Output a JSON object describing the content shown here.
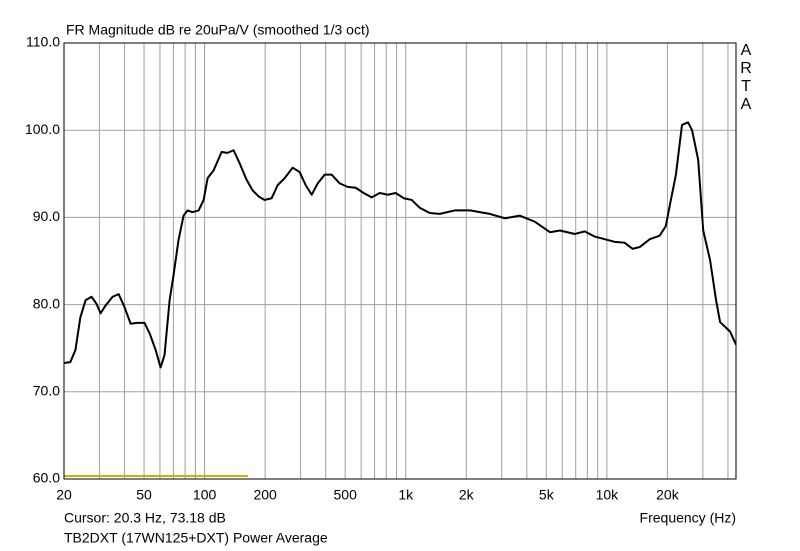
{
  "chart_data": {
    "type": "line",
    "title": "FR Magnitude dB re 20uPa/V (smoothed 1/3 oct)",
    "watermark": "ARTA",
    "cursor_text": "Cursor: 20.3 Hz, 73.18 dB",
    "x_label": "Frequency (Hz)",
    "log_x": true,
    "grid": true,
    "xlim": [
      20,
      43850
    ],
    "ylim": [
      60,
      110
    ],
    "xticks": [
      20,
      50,
      100,
      200,
      500,
      {
        "value": 1000,
        "label": "1k"
      },
      {
        "value": 2000,
        "label": "2k"
      },
      {
        "value": 5000,
        "label": "5k"
      },
      {
        "value": 10000,
        "label": "10k"
      },
      {
        "value": 20000,
        "label": "20k"
      }
    ],
    "xgrid": [
      30,
      40,
      60,
      70,
      80,
      90,
      300,
      400,
      600,
      700,
      800,
      900,
      3000,
      4000,
      6000,
      7000,
      8000,
      9000,
      30000,
      40000
    ],
    "yticks": [
      {
        "value": 60,
        "label": "60.0"
      },
      {
        "value": 70,
        "label": "70.0"
      },
      {
        "value": 80,
        "label": "80.0"
      },
      {
        "value": 90,
        "label": "90.0"
      },
      {
        "value": 100,
        "label": "100.0"
      },
      {
        "value": 110,
        "label": "110.0"
      }
    ],
    "x": [
      20,
      21.5,
      22.8,
      24.1,
      25.6,
      27.4,
      29.0,
      30.4,
      32.2,
      34.9,
      37.4,
      40.0,
      42.9,
      45.9,
      50.3,
      53.3,
      57.1,
      60.4,
      63.2,
      67.0,
      70.1,
      74.2,
      78.6,
      82.3,
      87.1,
      93.4,
      98.9,
      103.5,
      110.9,
      121.5,
      130.1,
      139.4,
      149.4,
      161.8,
      173.3,
      185.7,
      198.9,
      215.5,
      230.9,
      250.1,
      274.0,
      296.9,
      318.1,
      340.8,
      365.1,
      395.5,
      428.5,
      469.6,
      514.6,
      564.0,
      618.0,
      677.4,
      742.4,
      813.3,
      891.5,
      977.3,
      1071,
      1174,
      1317,
      1476,
      1754,
      2085,
      2619,
      3111,
      3692,
      4389,
      5214,
      5838,
      6935,
      7763,
      8700,
      9753,
      10930,
      12240,
      13430,
      14570,
      16340,
      18300,
      19630,
      20560,
      22040,
      23630,
      25330,
      26520,
      28440,
      30130,
      32590,
      34910,
      36540,
      40990,
      43850
    ],
    "series": [
      {
        "name": "TB2DXT (17WN125+DXT) Power Average",
        "color": "#000000",
        "values": [
          73.3,
          73.4,
          74.8,
          78.5,
          80.5,
          80.9,
          80.1,
          79.0,
          79.9,
          80.9,
          81.2,
          79.7,
          77.8,
          77.9,
          77.9,
          76.7,
          74.8,
          72.8,
          74.2,
          80.5,
          83.4,
          87.4,
          90.2,
          90.8,
          90.6,
          90.8,
          92.0,
          94.5,
          95.4,
          97.5,
          97.4,
          97.7,
          96.2,
          94.3,
          93.1,
          92.4,
          92.0,
          92.2,
          93.7,
          94.5,
          95.7,
          95.2,
          93.7,
          92.6,
          93.9,
          94.9,
          94.9,
          93.9,
          93.5,
          93.4,
          92.8,
          92.3,
          92.8,
          92.6,
          92.8,
          92.2,
          92.0,
          91.1,
          90.5,
          90.4,
          90.8,
          90.8,
          90.4,
          89.9,
          90.2,
          89.5,
          88.3,
          88.5,
          88.1,
          88.4,
          87.8,
          87.5,
          87.2,
          87.1,
          86.4,
          86.6,
          87.5,
          87.9,
          89.0,
          91.4,
          94.9,
          100.6,
          100.9,
          100.0,
          96.6,
          88.5,
          85.1,
          80.5,
          78.0,
          76.9,
          75.4
        ]
      }
    ]
  }
}
